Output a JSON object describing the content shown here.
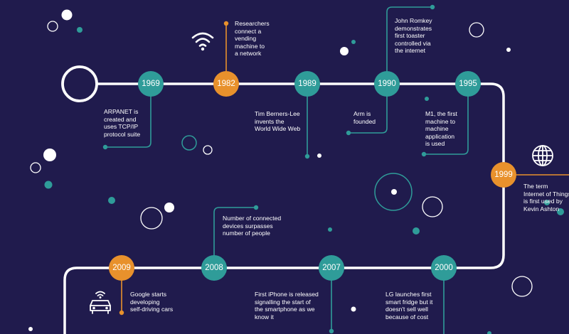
{
  "colors": {
    "background": "#201b4d",
    "timeline": "#ffffff",
    "teal": "#2f9c99",
    "orange": "#e8912c",
    "text": "#ffffff"
  },
  "milestones": [
    {
      "year": "1969",
      "color": "teal",
      "caption": [
        "ARPANET is",
        "created and",
        "uses TCP/IP",
        "protocol suite"
      ]
    },
    {
      "year": "1982",
      "color": "orange",
      "icon": "wifi-icon",
      "caption": [
        "Researchers",
        "connect a",
        "vending",
        "machine to",
        "a network"
      ]
    },
    {
      "year": "1989",
      "color": "teal",
      "caption": [
        "Tim Berners-Lee",
        "invents the",
        "World Wide Web"
      ]
    },
    {
      "year": "1990",
      "color": "teal",
      "caption": [
        "Arm is",
        "founded"
      ]
    },
    {
      "year": "1990",
      "color": "teal",
      "caption": [
        "John Romkey",
        "demonstrates",
        "first toaster",
        "controlled via",
        "the internet"
      ]
    },
    {
      "year": "1995",
      "color": "teal",
      "caption": [
        "M1, the first",
        "machine to",
        "machine",
        "application",
        "is used"
      ]
    },
    {
      "year": "1999",
      "color": "orange",
      "icon": "globe-icon",
      "caption": [
        "The term",
        "Internet of Things",
        "is first used by",
        "Kevin Ashton"
      ]
    },
    {
      "year": "2000",
      "color": "teal",
      "caption": [
        "LG launches first",
        "smart fridge but it",
        "doesn't sell well",
        "because of cost"
      ]
    },
    {
      "year": "2007",
      "color": "teal",
      "caption": [
        "First iPhone is released",
        "signalling the start of",
        "the smartphone as we",
        "know it"
      ]
    },
    {
      "year": "2008",
      "color": "teal",
      "caption": [
        "Number of connected",
        "devices surpasses",
        "number of people"
      ]
    },
    {
      "year": "2009",
      "color": "orange",
      "icon": "self-driving-car-icon",
      "caption": [
        "Google starts",
        "developing",
        "self-driving cars"
      ]
    }
  ]
}
